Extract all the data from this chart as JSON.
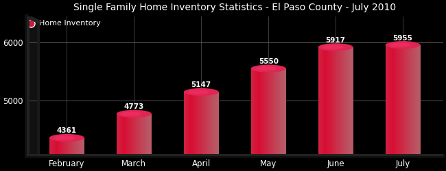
{
  "title": "Single Family Home Inventory Statistics - El Paso County - July 2010",
  "legend_label": "Home Inventory",
  "categories": [
    "February",
    "March",
    "April",
    "May",
    "June",
    "July"
  ],
  "values": [
    4361,
    4773,
    5147,
    5550,
    5917,
    5955
  ],
  "bar_color_left": "#cc1a3a",
  "bar_color_right": "#c06070",
  "bar_color_top": "#e02050",
  "background_color": "#000000",
  "plot_bg_color": "#000000",
  "grid_color": "#555555",
  "text_color": "#ffffff",
  "title_color": "#ffffff",
  "ylim_min": 4050,
  "ylim_max": 6450,
  "yticks": [
    5000,
    6000
  ],
  "bar_width": 0.52,
  "legend_dot_color": "#cc1a3a",
  "value_label_color": "#ffffff",
  "title_fontsize": 10,
  "axis_fontsize": 8.5,
  "value_fontsize": 7.5
}
